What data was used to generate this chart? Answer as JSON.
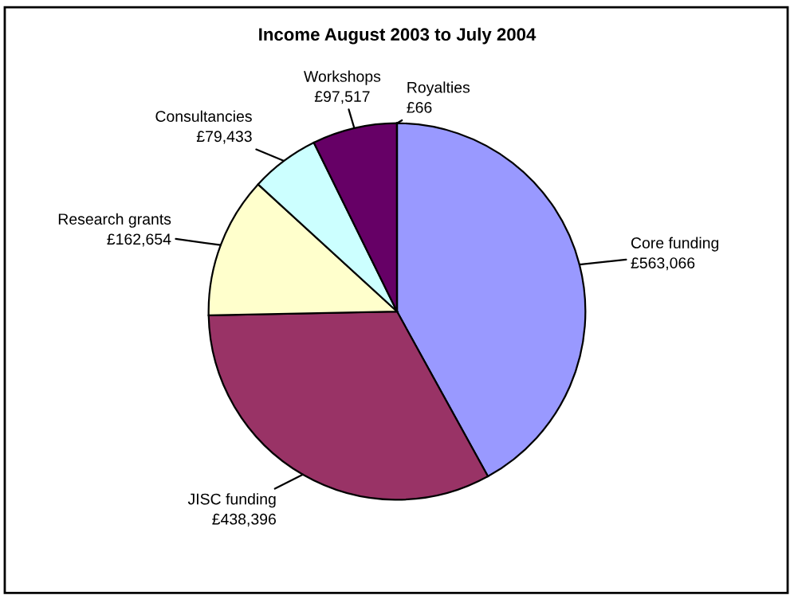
{
  "chart_data": {
    "type": "pie",
    "title": "Income August 2003 to July 2004",
    "categories": [
      "Core funding",
      "JISC funding",
      "Research grants",
      "Consultancies",
      "Workshops",
      "Royalties"
    ],
    "values": [
      563066,
      438396,
      162654,
      79433,
      97517,
      66
    ],
    "value_labels": [
      "£563,066",
      "£438,396",
      "£162,654",
      "£79,433",
      "£97,517",
      "£66"
    ],
    "colors": [
      "#9999ff",
      "#993366",
      "#ffffcc",
      "#ccffff",
      "#660066",
      "#ff8080"
    ]
  }
}
